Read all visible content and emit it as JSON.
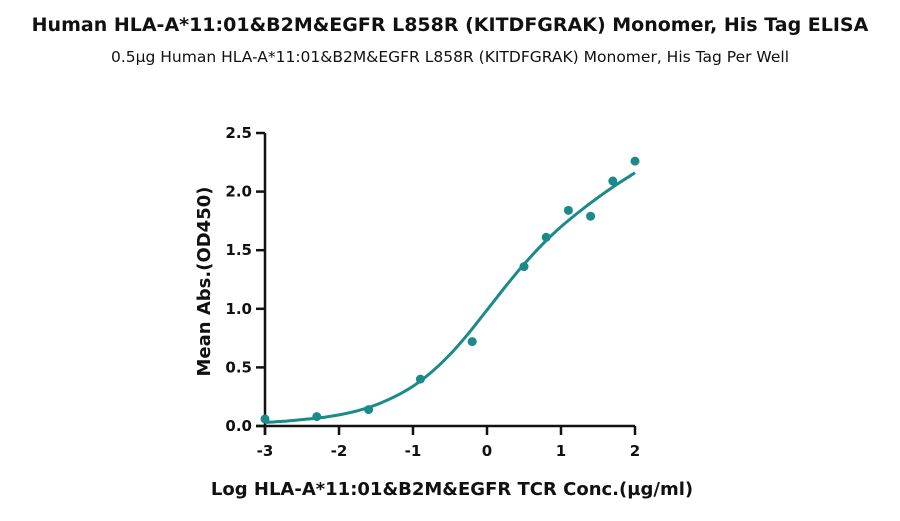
{
  "chart_data": {
    "type": "scatter",
    "title": "Human HLA-A*11:01&B2M&EGFR L858R (KITDFGRAK) Monomer, His Tag ELISA",
    "subtitle": "0.5µg Human HLA-A*11:01&B2M&EGFR L858R (KITDFGRAK) Monomer, His Tag Per Well",
    "xlabel": "Log HLA-A*11:01&B2M&EGFR TCR Conc.(µg/ml)",
    "ylabel": "Mean Abs.(OD450)",
    "xlim": [
      -3,
      2
    ],
    "ylim": [
      0,
      2.5
    ],
    "xticks": [
      -3,
      -2,
      -1,
      0,
      1,
      2
    ],
    "yticks": [
      0.0,
      0.5,
      1.0,
      1.5,
      2.0,
      2.5
    ],
    "xtick_labels": [
      "-3",
      "-2",
      "-1",
      "0",
      "1",
      "2"
    ],
    "ytick_labels": [
      "0.0",
      "0.5",
      "1.0",
      "1.5",
      "2.0",
      "2.5"
    ],
    "color": "#1a8a8a",
    "points": {
      "x": [
        -3.0,
        -2.3,
        -1.6,
        -0.9,
        -0.2,
        0.5,
        0.8,
        1.1,
        1.4,
        1.7,
        2.0
      ],
      "y": [
        0.06,
        0.08,
        0.14,
        0.4,
        0.72,
        1.36,
        1.61,
        1.84,
        1.79,
        2.09,
        2.26
      ]
    },
    "fit": {
      "x": [
        -3.0,
        -2.75,
        -2.5,
        -2.25,
        -2.0,
        -1.75,
        -1.5,
        -1.25,
        -1.0,
        -0.75,
        -0.5,
        -0.25,
        0.0,
        0.25,
        0.5,
        0.75,
        1.0,
        1.25,
        1.5,
        1.75,
        2.0
      ],
      "y": [
        0.03,
        0.04,
        0.055,
        0.07,
        0.095,
        0.13,
        0.18,
        0.25,
        0.34,
        0.46,
        0.61,
        0.79,
        0.99,
        1.19,
        1.38,
        1.55,
        1.7,
        1.83,
        1.95,
        2.06,
        2.16
      ]
    }
  }
}
